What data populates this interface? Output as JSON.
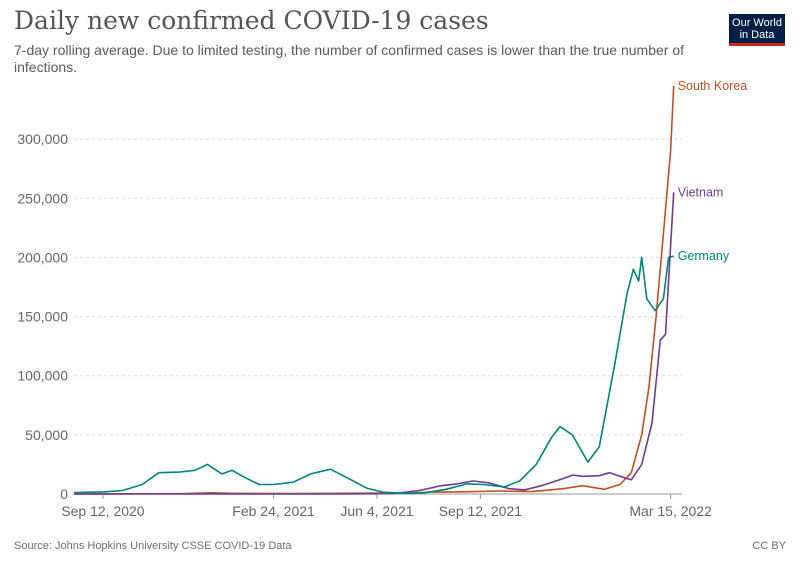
{
  "header": {
    "title": "Daily new confirmed COVID-19 cases",
    "subtitle": "7-day rolling average. Due to limited testing, the number of confirmed cases is lower than the true number of infections."
  },
  "logo": {
    "line1": "Our World",
    "line2": "in Data",
    "bg_color": "#002147",
    "accent_color": "#ce261e"
  },
  "footer": {
    "source": "Source: Johns Hopkins University CSSE COVID-19 Data",
    "license": "CC BY"
  },
  "chart_data": {
    "type": "line",
    "title": "Daily new confirmed COVID-19 cases",
    "xlabel": "",
    "ylabel": "",
    "x_range": [
      "2020-08-15",
      "2022-03-26"
    ],
    "ylim": [
      0,
      350000
    ],
    "y_ticks": [
      0,
      50000,
      100000,
      150000,
      200000,
      250000,
      300000
    ],
    "y_tick_labels": [
      "0",
      "50,000",
      "100,000",
      "150,000",
      "200,000",
      "250,000",
      "300,000"
    ],
    "x_ticks": [
      "2020-09-12",
      "2021-02-24",
      "2021-06-04",
      "2021-09-12",
      "2022-03-15"
    ],
    "x_tick_labels": [
      "Sep 12, 2020",
      "Feb 24, 2021",
      "Jun 4, 2021",
      "Sep 12, 2021",
      "Mar 15, 2022"
    ],
    "grid": true,
    "legend": "inline-right",
    "series": [
      {
        "name": "South Korea",
        "color": "#c15025",
        "points": [
          [
            "2020-08-15",
            100
          ],
          [
            "2020-09-12",
            120
          ],
          [
            "2020-12-01",
            400
          ],
          [
            "2020-12-25",
            1000
          ],
          [
            "2021-01-20",
            500
          ],
          [
            "2021-03-15",
            400
          ],
          [
            "2021-05-01",
            600
          ],
          [
            "2021-07-10",
            1000
          ],
          [
            "2021-07-25",
            1600
          ],
          [
            "2021-08-20",
            1800
          ],
          [
            "2021-10-01",
            2500
          ],
          [
            "2021-11-01",
            2000
          ],
          [
            "2021-12-01",
            4500
          ],
          [
            "2021-12-20",
            7000
          ],
          [
            "2022-01-10",
            4000
          ],
          [
            "2022-01-25",
            8000
          ],
          [
            "2022-02-05",
            18000
          ],
          [
            "2022-02-15",
            50000
          ],
          [
            "2022-02-22",
            90000
          ],
          [
            "2022-03-01",
            150000
          ],
          [
            "2022-03-08",
            220000
          ],
          [
            "2022-03-15",
            290000
          ],
          [
            "2022-03-18",
            345000
          ]
        ]
      },
      {
        "name": "Vietnam",
        "color": "#6d3e91",
        "points": [
          [
            "2020-08-15",
            0
          ],
          [
            "2021-05-01",
            50
          ],
          [
            "2021-06-20",
            300
          ],
          [
            "2021-07-15",
            3000
          ],
          [
            "2021-08-05",
            7000
          ],
          [
            "2021-08-20",
            8500
          ],
          [
            "2021-09-05",
            11000
          ],
          [
            "2021-09-20",
            9500
          ],
          [
            "2021-10-10",
            4500
          ],
          [
            "2021-10-25",
            3500
          ],
          [
            "2021-11-10",
            7000
          ],
          [
            "2021-12-01",
            13000
          ],
          [
            "2021-12-10",
            16000
          ],
          [
            "2021-12-20",
            15000
          ],
          [
            "2022-01-05",
            15500
          ],
          [
            "2022-01-15",
            18000
          ],
          [
            "2022-01-25",
            15000
          ],
          [
            "2022-02-05",
            12000
          ],
          [
            "2022-02-15",
            25000
          ],
          [
            "2022-02-25",
            60000
          ],
          [
            "2022-03-05",
            130000
          ],
          [
            "2022-03-10",
            135000
          ],
          [
            "2022-03-14",
            195000
          ],
          [
            "2022-03-18",
            255000
          ]
        ]
      },
      {
        "name": "Germany",
        "color": "#00847e",
        "points": [
          [
            "2020-08-15",
            1200
          ],
          [
            "2020-09-12",
            1800
          ],
          [
            "2020-10-01",
            3000
          ],
          [
            "2020-10-20",
            8000
          ],
          [
            "2020-11-05",
            18000
          ],
          [
            "2020-11-25",
            18500
          ],
          [
            "2020-12-10",
            20000
          ],
          [
            "2020-12-22",
            25000
          ],
          [
            "2021-01-05",
            17000
          ],
          [
            "2021-01-15",
            20000
          ],
          [
            "2021-01-25",
            15000
          ],
          [
            "2021-02-10",
            8000
          ],
          [
            "2021-02-24",
            8000
          ],
          [
            "2021-03-15",
            10000
          ],
          [
            "2021-04-01",
            17000
          ],
          [
            "2021-04-20",
            21000
          ],
          [
            "2021-05-10",
            12000
          ],
          [
            "2021-05-25",
            5000
          ],
          [
            "2021-06-10",
            1500
          ],
          [
            "2021-07-01",
            500
          ],
          [
            "2021-07-20",
            1000
          ],
          [
            "2021-08-10",
            4000
          ],
          [
            "2021-08-30",
            8500
          ],
          [
            "2021-09-15",
            8000
          ],
          [
            "2021-10-05",
            6000
          ],
          [
            "2021-10-20",
            11000
          ],
          [
            "2021-11-05",
            25000
          ],
          [
            "2021-11-20",
            48000
          ],
          [
            "2021-11-28",
            57000
          ],
          [
            "2021-12-10",
            50000
          ],
          [
            "2021-12-25",
            27000
          ],
          [
            "2022-01-05",
            40000
          ],
          [
            "2022-01-20",
            110000
          ],
          [
            "2022-02-01",
            170000
          ],
          [
            "2022-02-07",
            190000
          ],
          [
            "2022-02-12",
            180000
          ],
          [
            "2022-02-15",
            200000
          ],
          [
            "2022-02-20",
            165000
          ],
          [
            "2022-02-28",
            155000
          ],
          [
            "2022-03-08",
            165000
          ],
          [
            "2022-03-13",
            200000
          ],
          [
            "2022-03-18",
            201000
          ]
        ]
      }
    ]
  }
}
